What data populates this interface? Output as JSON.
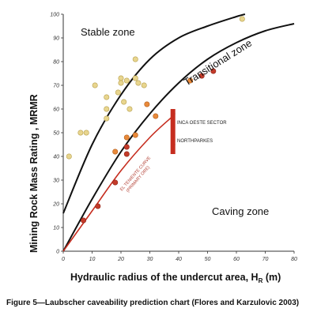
{
  "caption": "Figure 5—Laubscher caveability prediction chart (Flores and Karzulovic 2003)",
  "colors": {
    "stable_point": "#e8d58e",
    "transitional_point": "#e8893a",
    "caving_point": "#c43b2a",
    "boundary": "#111111",
    "el_teniente_curve": "#c62d1f",
    "sector_marker": "#c62d1f"
  },
  "chart_data": {
    "type": "scatter",
    "xlabel": "Hydraulic radius of the undercut area, H",
    "xlabel_subscript": "R",
    "xlabel_unit": " (m)",
    "ylabel": "Mining Rock Mass Rating , MRMR",
    "xlim": [
      0,
      80
    ],
    "ylim": [
      0,
      100
    ],
    "xticks": [
      0,
      10,
      20,
      30,
      40,
      50,
      60,
      70,
      80
    ],
    "yticks": [
      0,
      10,
      20,
      30,
      40,
      50,
      60,
      70,
      80,
      90,
      100
    ],
    "grid": false,
    "zone_labels": {
      "stable": "Stable zone",
      "transitional": "Transitional zone",
      "caving": "Caving zone"
    },
    "annotations": {
      "inca_oeste": "INCA OESTE SECTOR",
      "northparkes": "NORTHPARKES",
      "el_teniente_line1": "EL TENIENTE CURVE",
      "el_teniente_line2": "(PRIMARY ORE)"
    },
    "boundaries": [
      {
        "id": "upper",
        "x": [
          0,
          10,
          20,
          30,
          40,
          50,
          60,
          63
        ],
        "y": [
          16,
          45,
          66,
          81,
          90,
          95,
          99,
          100
        ]
      },
      {
        "id": "lower",
        "x": [
          0,
          10,
          20,
          30,
          40,
          50,
          60,
          70,
          80
        ],
        "y": [
          0,
          22,
          42,
          58,
          71,
          81,
          88,
          93,
          96
        ]
      }
    ],
    "el_teniente_curve": {
      "x": [
        0,
        10,
        20,
        30,
        38
      ],
      "y": [
        0,
        17,
        34,
        48,
        57
      ]
    },
    "sector_markers": [
      {
        "name": "INCA OESTE SECTOR",
        "x": 38,
        "y": [
          51,
          60
        ]
      },
      {
        "name": "NORTHPARKES",
        "x": 38,
        "y": [
          41,
          51
        ]
      }
    ],
    "series": [
      {
        "zone": "stable",
        "points": [
          [
            2,
            40
          ],
          [
            6,
            50
          ],
          [
            8,
            50
          ],
          [
            11,
            70
          ],
          [
            15,
            65
          ],
          [
            15,
            60
          ],
          [
            15,
            56
          ],
          [
            19,
            67
          ],
          [
            20,
            73
          ],
          [
            20,
            71
          ],
          [
            21,
            63
          ],
          [
            22,
            72
          ],
          [
            23,
            60
          ],
          [
            25,
            81
          ],
          [
            25,
            73
          ],
          [
            26,
            71
          ],
          [
            28,
            70
          ],
          [
            62,
            98
          ]
        ]
      },
      {
        "zone": "transitional",
        "points": [
          [
            18,
            42
          ],
          [
            22,
            48
          ],
          [
            25,
            49
          ],
          [
            29,
            62
          ],
          [
            32,
            57
          ],
          [
            44,
            72
          ]
        ]
      },
      {
        "zone": "caving",
        "points": [
          [
            7,
            13
          ],
          [
            12,
            19
          ],
          [
            18,
            29
          ],
          [
            22,
            41
          ],
          [
            22,
            44
          ],
          [
            48,
            74
          ],
          [
            52,
            76
          ]
        ]
      }
    ]
  }
}
